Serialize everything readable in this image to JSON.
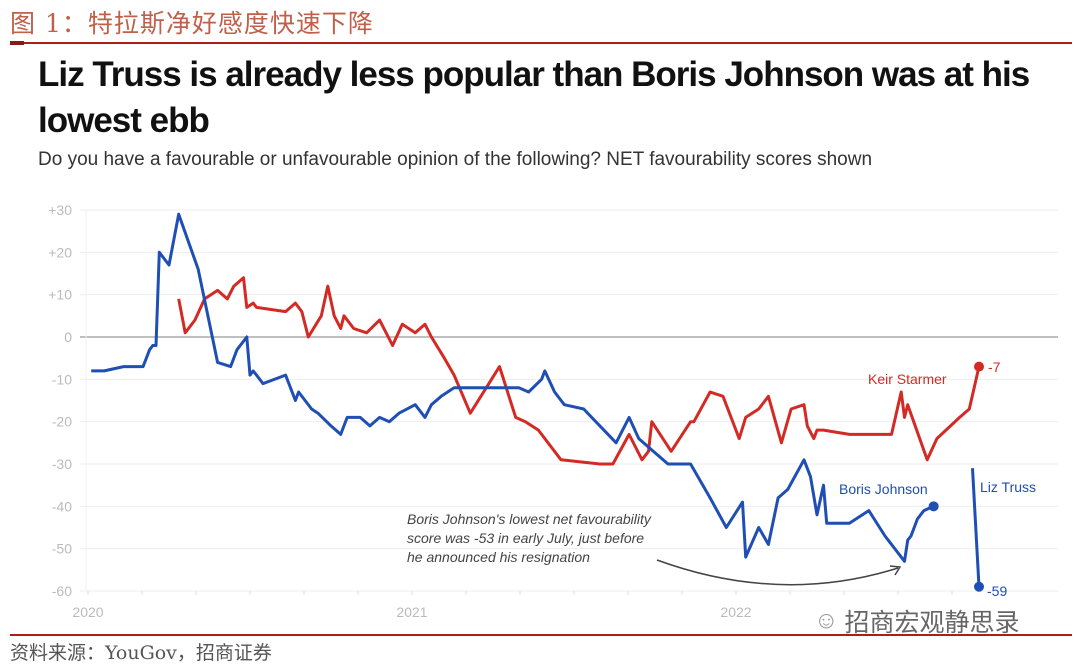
{
  "figure_label": "图 1：特拉斯净好感度快速下降",
  "source": "资料来源：YouGov，招商证券",
  "watermark": {
    "icon": "wechat-icon",
    "text": "招商宏观静思录"
  },
  "chart_data": {
    "type": "line",
    "title": "Liz Truss is already less popular than Boris Johnson was at his lowest ebb",
    "subtitle": "Do you have a favourable or unfavourable opinion of the following? NET favourability scores shown",
    "xlabel": "",
    "ylabel": "",
    "xlim": [
      2020.0,
      2022.8
    ],
    "ylim": [
      -60,
      30
    ],
    "xticks": [
      {
        "value": 2020,
        "label": "2020"
      },
      {
        "value": 2021,
        "label": "2021"
      },
      {
        "value": 2022,
        "label": "2022"
      }
    ],
    "yticks": [
      {
        "value": 30,
        "label": "+30"
      },
      {
        "value": 20,
        "label": "+20"
      },
      {
        "value": 10,
        "label": "+10"
      },
      {
        "value": 0,
        "label": "0"
      },
      {
        "value": -10,
        "label": "-10"
      },
      {
        "value": -20,
        "label": "-20"
      },
      {
        "value": -30,
        "label": "-30"
      },
      {
        "value": -40,
        "label": "-40"
      },
      {
        "value": -50,
        "label": "-50"
      },
      {
        "value": -60,
        "label": "-60"
      }
    ],
    "grid": true,
    "series": [
      {
        "name": "Keir Starmer",
        "color": "#d42a25",
        "end_label": "-7",
        "end_marker": true,
        "points": [
          [
            2020.28,
            9
          ],
          [
            2020.3,
            1
          ],
          [
            2020.33,
            4
          ],
          [
            2020.36,
            9
          ],
          [
            2020.4,
            11
          ],
          [
            2020.43,
            9
          ],
          [
            2020.45,
            12
          ],
          [
            2020.48,
            14
          ],
          [
            2020.49,
            7
          ],
          [
            2020.51,
            8
          ],
          [
            2020.52,
            7
          ],
          [
            2020.61,
            6
          ],
          [
            2020.64,
            8
          ],
          [
            2020.66,
            6
          ],
          [
            2020.68,
            0
          ],
          [
            2020.72,
            5
          ],
          [
            2020.74,
            12
          ],
          [
            2020.76,
            5
          ],
          [
            2020.78,
            2
          ],
          [
            2020.79,
            5
          ],
          [
            2020.82,
            2
          ],
          [
            2020.86,
            1
          ],
          [
            2020.9,
            4
          ],
          [
            2020.94,
            -2
          ],
          [
            2020.97,
            3
          ],
          [
            2021.01,
            1
          ],
          [
            2021.04,
            3
          ],
          [
            2021.06,
            0
          ],
          [
            2021.1,
            -5
          ],
          [
            2021.13,
            -9
          ],
          [
            2021.18,
            -18
          ],
          [
            2021.27,
            -7
          ],
          [
            2021.32,
            -19
          ],
          [
            2021.35,
            -20
          ],
          [
            2021.39,
            -22
          ],
          [
            2021.46,
            -29
          ],
          [
            2021.58,
            -30
          ],
          [
            2021.62,
            -30
          ],
          [
            2021.67,
            -23
          ],
          [
            2021.71,
            -29
          ],
          [
            2021.73,
            -27
          ],
          [
            2021.74,
            -20
          ],
          [
            2021.8,
            -27
          ],
          [
            2021.86,
            -20
          ],
          [
            2021.87,
            -20
          ],
          [
            2021.92,
            -13
          ],
          [
            2021.96,
            -14
          ],
          [
            2022.01,
            -24
          ],
          [
            2022.03,
            -19
          ],
          [
            2022.07,
            -17
          ],
          [
            2022.1,
            -14
          ],
          [
            2022.14,
            -25
          ],
          [
            2022.17,
            -17
          ],
          [
            2022.21,
            -16
          ],
          [
            2022.22,
            -21
          ],
          [
            2022.24,
            -24
          ],
          [
            2022.25,
            -22
          ],
          [
            2022.27,
            -22
          ],
          [
            2022.35,
            -23
          ],
          [
            2022.48,
            -23
          ],
          [
            2022.51,
            -13
          ],
          [
            2022.52,
            -19
          ],
          [
            2022.53,
            -16
          ],
          [
            2022.59,
            -29
          ],
          [
            2022.62,
            -24
          ],
          [
            2022.69,
            -19
          ],
          [
            2022.72,
            -17
          ],
          [
            2022.75,
            -7
          ]
        ]
      },
      {
        "name": "Boris Johnson",
        "color": "#1f4eb4",
        "end_label": "",
        "end_marker": true,
        "points": [
          [
            2020.01,
            -8
          ],
          [
            2020.05,
            -8
          ],
          [
            2020.11,
            -7
          ],
          [
            2020.14,
            -7
          ],
          [
            2020.17,
            -7
          ],
          [
            2020.19,
            -3
          ],
          [
            2020.2,
            -2
          ],
          [
            2020.21,
            -2
          ],
          [
            2020.22,
            20
          ],
          [
            2020.25,
            17
          ],
          [
            2020.28,
            29
          ],
          [
            2020.34,
            16
          ],
          [
            2020.4,
            -6
          ],
          [
            2020.44,
            -7
          ],
          [
            2020.46,
            -3
          ],
          [
            2020.49,
            0
          ],
          [
            2020.5,
            -9
          ],
          [
            2020.51,
            -8
          ],
          [
            2020.52,
            -9
          ],
          [
            2020.54,
            -11
          ],
          [
            2020.61,
            -9
          ],
          [
            2020.64,
            -15
          ],
          [
            2020.65,
            -13
          ],
          [
            2020.69,
            -17
          ],
          [
            2020.71,
            -18
          ],
          [
            2020.75,
            -21
          ],
          [
            2020.78,
            -23
          ],
          [
            2020.8,
            -19
          ],
          [
            2020.84,
            -19
          ],
          [
            2020.87,
            -21
          ],
          [
            2020.9,
            -19
          ],
          [
            2020.93,
            -20
          ],
          [
            2020.96,
            -18
          ],
          [
            2021.01,
            -16
          ],
          [
            2021.04,
            -19
          ],
          [
            2021.06,
            -16
          ],
          [
            2021.09,
            -14
          ],
          [
            2021.13,
            -12
          ],
          [
            2021.16,
            -12
          ],
          [
            2021.27,
            -12
          ],
          [
            2021.33,
            -12
          ],
          [
            2021.36,
            -13
          ],
          [
            2021.4,
            -10
          ],
          [
            2021.41,
            -8
          ],
          [
            2021.44,
            -13
          ],
          [
            2021.47,
            -16
          ],
          [
            2021.53,
            -17
          ],
          [
            2021.58,
            -21
          ],
          [
            2021.63,
            -25
          ],
          [
            2021.67,
            -19
          ],
          [
            2021.7,
            -24
          ],
          [
            2021.73,
            -26
          ],
          [
            2021.79,
            -30
          ],
          [
            2021.86,
            -30
          ],
          [
            2021.92,
            -38
          ],
          [
            2021.97,
            -45
          ],
          [
            2022.02,
            -39
          ],
          [
            2022.03,
            -52
          ],
          [
            2022.07,
            -45
          ],
          [
            2022.1,
            -49
          ],
          [
            2022.13,
            -38
          ],
          [
            2022.16,
            -36
          ],
          [
            2022.21,
            -29
          ],
          [
            2022.23,
            -33
          ],
          [
            2022.25,
            -42
          ],
          [
            2022.27,
            -35
          ],
          [
            2022.28,
            -44
          ],
          [
            2022.35,
            -44
          ],
          [
            2022.41,
            -41
          ],
          [
            2022.46,
            -47
          ],
          [
            2022.52,
            -53
          ],
          [
            2022.53,
            -48
          ],
          [
            2022.54,
            -47
          ],
          [
            2022.56,
            -43
          ],
          [
            2022.58,
            -41
          ],
          [
            2022.61,
            -40
          ]
        ]
      },
      {
        "name": "Liz Truss",
        "color": "#1f4eb4",
        "end_label": "-59",
        "end_marker": true,
        "points": [
          [
            2022.73,
            -31
          ],
          [
            2022.75,
            -59
          ]
        ]
      }
    ],
    "annotations": [
      {
        "text_lines": [
          "Boris Johnson's lowest net favourability",
          "score was -53 in early July, just before",
          "he announced his resignation"
        ],
        "points_to": [
          2022.52,
          -53
        ]
      }
    ]
  }
}
